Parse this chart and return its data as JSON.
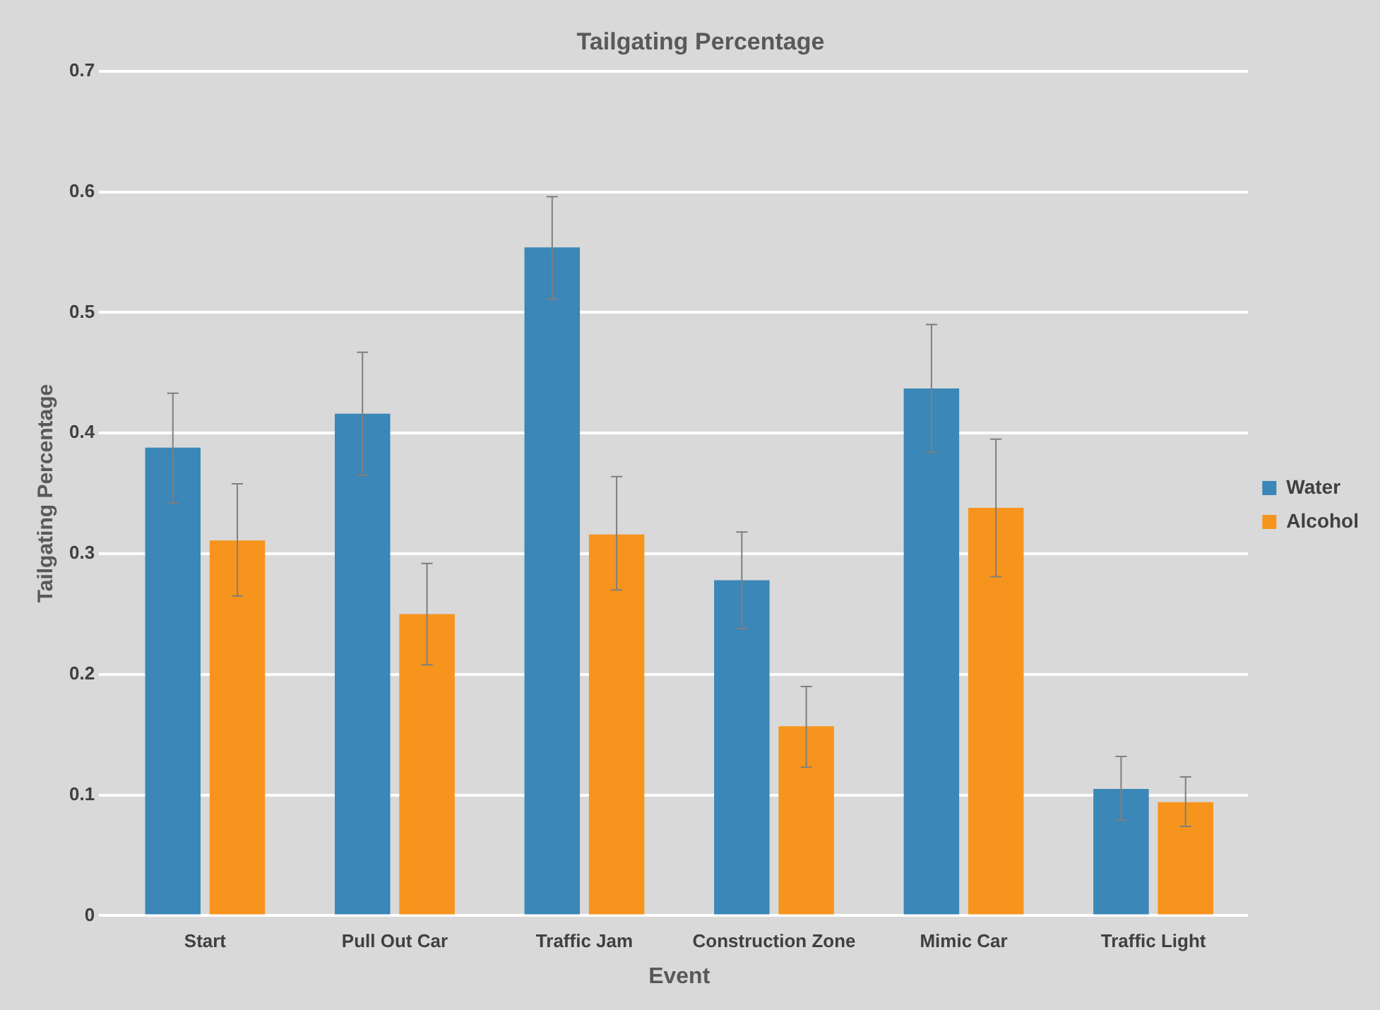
{
  "chart_data": {
    "type": "bar",
    "title": "Tailgating Percentage",
    "xlabel": "Event",
    "ylabel": "Tailgating Percentage",
    "categories": [
      "Start",
      "Pull Out Car",
      "Traffic Jam",
      "Construction Zone",
      "Mimic Car",
      "Traffic Light"
    ],
    "series": [
      {
        "name": "Water",
        "color": "#3a87b8",
        "values": [
          0.388,
          0.416,
          0.554,
          0.278,
          0.437,
          0.105
        ],
        "errors": [
          [
            0.342,
            0.433
          ],
          [
            0.365,
            0.467
          ],
          [
            0.511,
            0.596
          ],
          [
            0.238,
            0.318
          ],
          [
            0.384,
            0.49
          ],
          [
            0.079,
            0.132
          ]
        ]
      },
      {
        "name": "Alcohol",
        "color": "#f7941d",
        "values": [
          0.311,
          0.25,
          0.316,
          0.157,
          0.338,
          0.094
        ],
        "errors": [
          [
            0.265,
            0.358
          ],
          [
            0.208,
            0.292
          ],
          [
            0.27,
            0.364
          ],
          [
            0.123,
            0.19
          ],
          [
            0.281,
            0.395
          ],
          [
            0.074,
            0.115
          ]
        ]
      }
    ],
    "ylim": [
      0,
      0.7
    ],
    "yticks": [
      0,
      0.1,
      0.2,
      0.3,
      0.4,
      0.5,
      0.6,
      0.7
    ],
    "grid": "y",
    "legend": "right"
  }
}
